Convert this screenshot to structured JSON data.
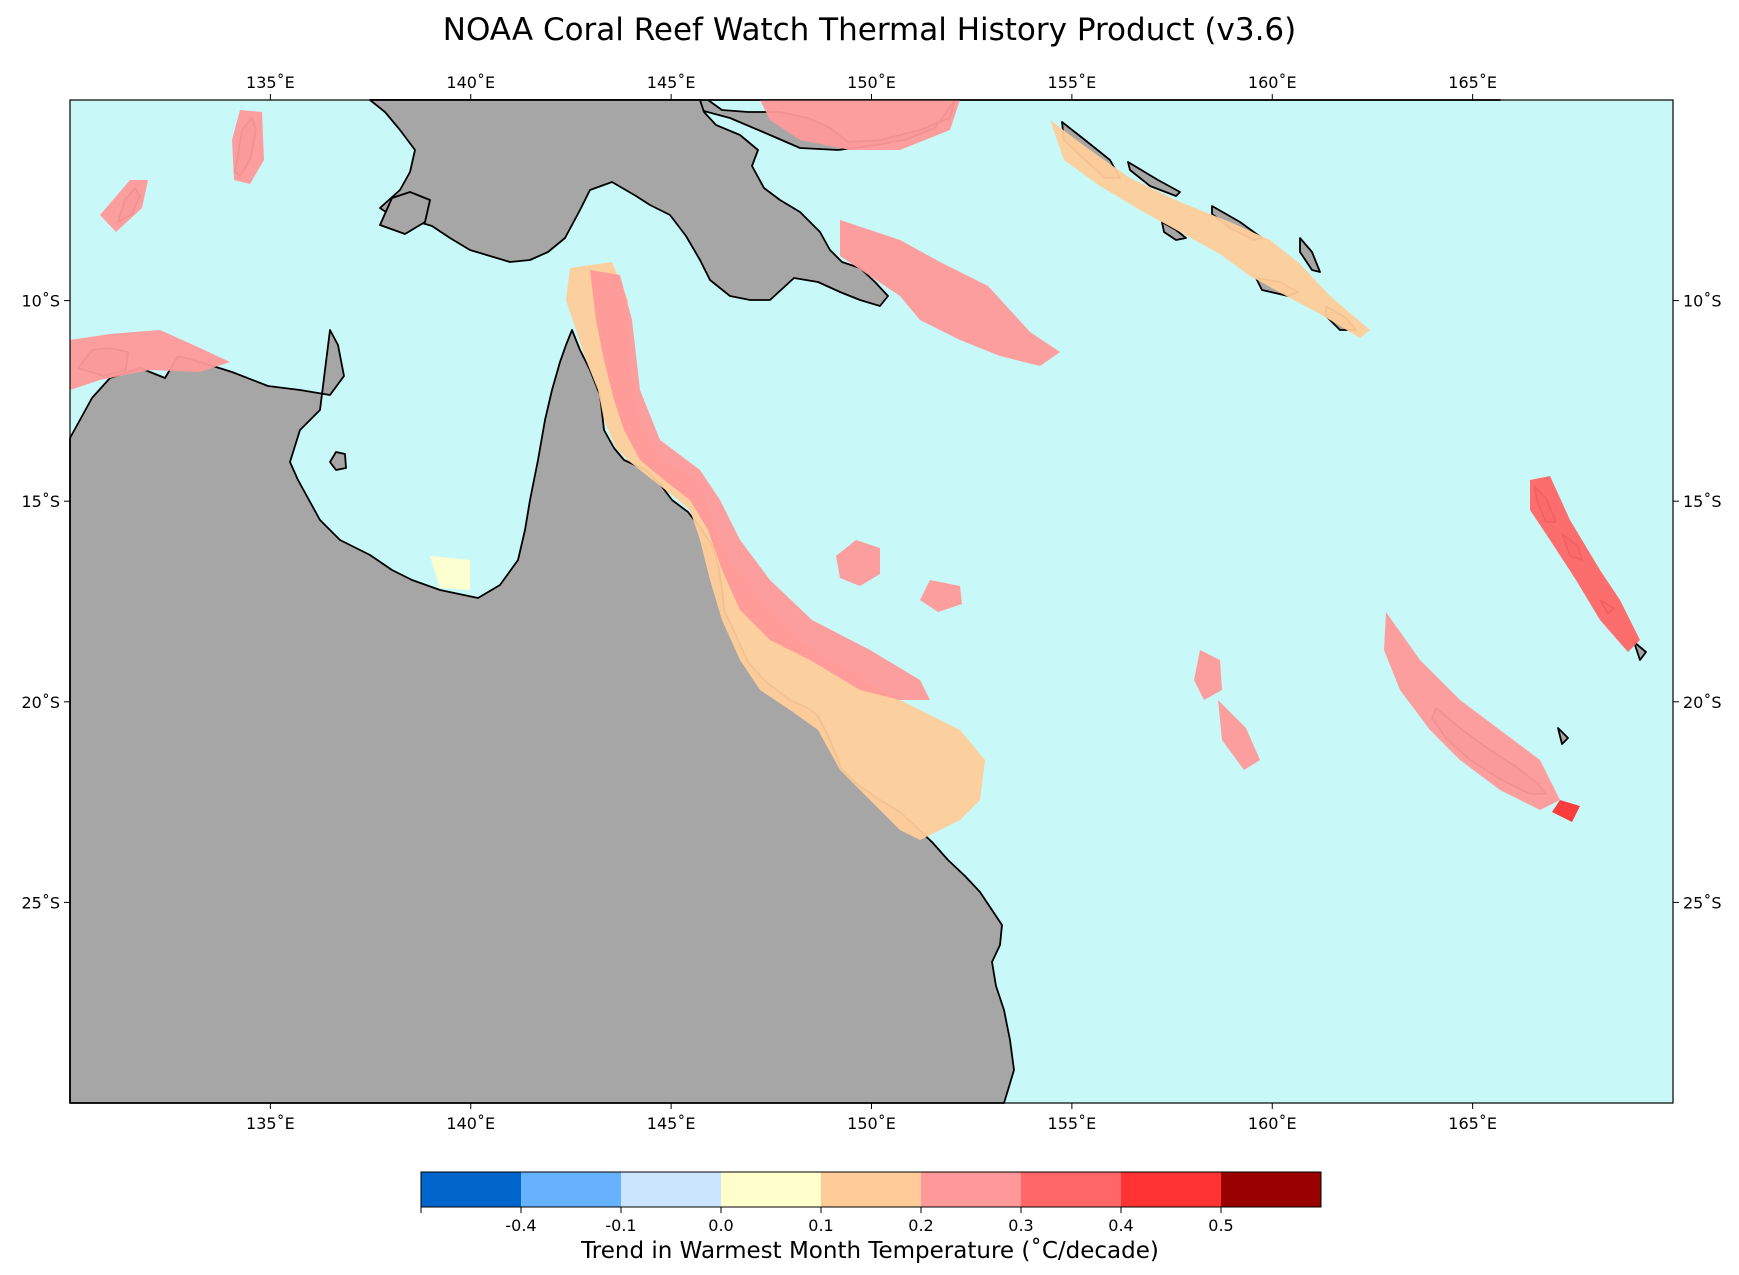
{
  "title": "NOAA Coral Reef Watch Thermal History Product (v3.6)",
  "map": {
    "extent": {
      "lon": [
        130,
        170
      ],
      "lat": [
        -30,
        -5
      ]
    },
    "ocean_color": "#c8f8f8",
    "land_color": "#a6a6a6",
    "coastline_color": "#000000",
    "lon_ticks": [
      {
        "value": 135,
        "label": "135˚E"
      },
      {
        "value": 140,
        "label": "140˚E"
      },
      {
        "value": 145,
        "label": "145˚E"
      },
      {
        "value": 150,
        "label": "150˚E"
      },
      {
        "value": 155,
        "label": "155˚E"
      },
      {
        "value": 160,
        "label": "160˚E"
      },
      {
        "value": 165,
        "label": "165˚E"
      }
    ],
    "lat_ticks": [
      {
        "value": -10,
        "label": "10˚S"
      },
      {
        "value": -15,
        "label": "15˚S"
      },
      {
        "value": -20,
        "label": "20˚S"
      },
      {
        "value": -25,
        "label": "25˚S"
      }
    ]
  },
  "colorbar": {
    "title": "Trend in Warmest Month Temperature (˚C/decade)",
    "colors": [
      "#0066cc",
      "#66b2ff",
      "#cce5ff",
      "#ffffcc",
      "#ffcc99",
      "#ff9999",
      "#ff6666",
      "#ff3333",
      "#990000"
    ],
    "tick_labels": [
      "-0.4",
      "-0.1",
      "0.0",
      "0.1",
      "0.2",
      "0.3",
      "0.4",
      "0.5"
    ]
  },
  "chart_data": {
    "type": "heatmap",
    "title": "NOAA Coral Reef Watch Thermal History Product (v3.6)",
    "xlabel": "",
    "ylabel": "",
    "xlim": [
      130,
      170
    ],
    "ylim": [
      -30,
      -5
    ],
    "colorbar_label": "Trend in Warmest Month Temperature (˚C/decade)",
    "colorbar_ticks": [
      -0.4,
      -0.1,
      0.0,
      0.1,
      0.2,
      0.3,
      0.4,
      0.5
    ]
  }
}
